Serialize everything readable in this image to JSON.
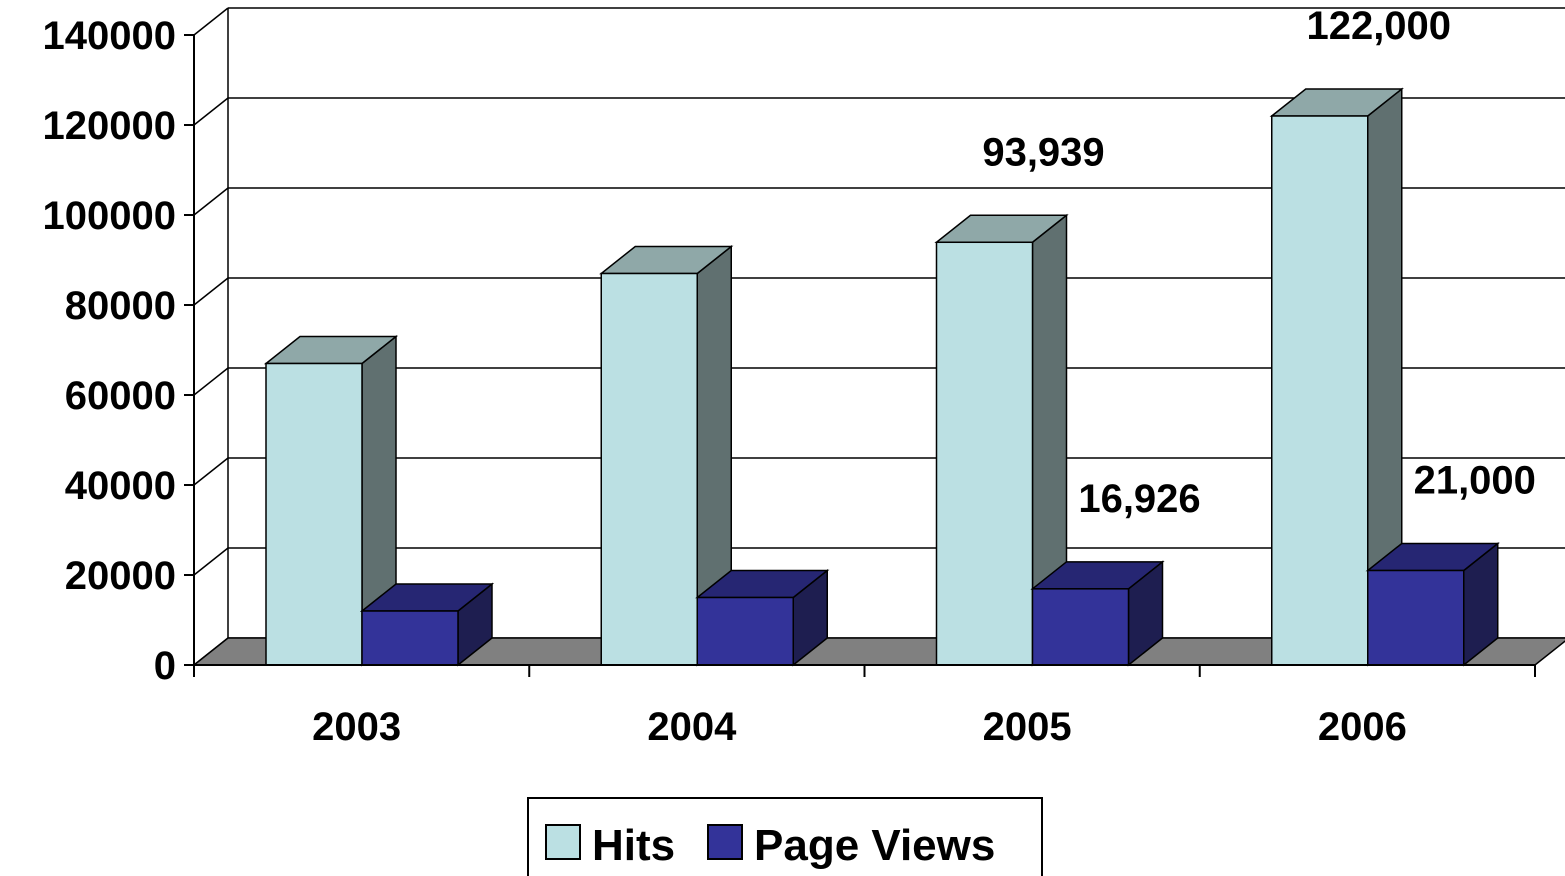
{
  "chart_data": {
    "type": "bar",
    "categories": [
      "2003",
      "2004",
      "2005",
      "2006"
    ],
    "series": [
      {
        "name": "Hits",
        "values": [
          67000,
          87000,
          93939,
          122000
        ],
        "color": "#BBE0E3",
        "side_color": "#607070",
        "top_color": "#8FA8A8"
      },
      {
        "name": "Page Views",
        "values": [
          12000,
          15000,
          16926,
          21000
        ],
        "color": "#333399",
        "side_color": "#1E1E50",
        "top_color": "#262673"
      }
    ],
    "data_labels": [
      {
        "series": 0,
        "category": 2,
        "text": "93,939"
      },
      {
        "series": 0,
        "category": 3,
        "text": "122,000"
      },
      {
        "series": 1,
        "category": 2,
        "text": "16,926"
      },
      {
        "series": 1,
        "category": 3,
        "text": "21,000"
      }
    ],
    "y_ticks": [
      "0",
      "20000",
      "40000",
      "60000",
      "80000",
      "100000",
      "120000",
      "140000"
    ],
    "ylim": [
      0,
      140000
    ],
    "grid": true,
    "legend_position": "bottom",
    "floor_color": "#808080",
    "title": "",
    "xlabel": "",
    "ylabel": ""
  }
}
